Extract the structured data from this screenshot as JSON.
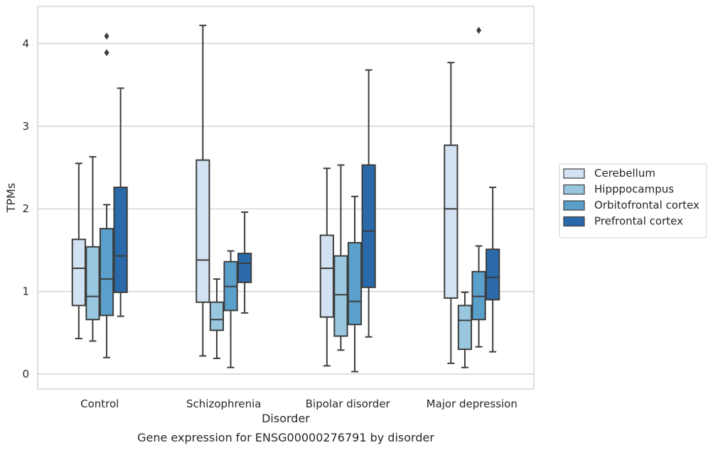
{
  "caption": "Gene expression for ENSG00000276791 by disorder",
  "chart_data": {
    "type": "box",
    "xlabel": "Disorder",
    "ylabel": "TPMs",
    "ylim": [
      -0.18,
      4.45
    ],
    "yticks": [
      0,
      1,
      2,
      3,
      4
    ],
    "grid": "horizontal",
    "legend_position": "right",
    "categories": [
      "Control",
      "Schizophrenia",
      "Bipolar disorder",
      "Major depression"
    ],
    "series": [
      {
        "name": "Cerebellum",
        "color": "#d2e2f2",
        "boxes": [
          {
            "whisker_low": 0.43,
            "q1": 0.83,
            "median": 1.28,
            "q3": 1.63,
            "whisker_high": 2.55,
            "outliers": []
          },
          {
            "whisker_low": 0.22,
            "q1": 0.87,
            "median": 1.38,
            "q3": 2.59,
            "whisker_high": 4.22,
            "outliers": []
          },
          {
            "whisker_low": 0.1,
            "q1": 0.69,
            "median": 1.28,
            "q3": 1.68,
            "whisker_high": 2.49,
            "outliers": []
          },
          {
            "whisker_low": 0.13,
            "q1": 0.92,
            "median": 2.0,
            "q3": 2.77,
            "whisker_high": 3.77,
            "outliers": []
          }
        ]
      },
      {
        "name": "Hipppocampus",
        "color": "#9ac7e0",
        "boxes": [
          {
            "whisker_low": 0.4,
            "q1": 0.66,
            "median": 0.94,
            "q3": 1.54,
            "whisker_high": 2.63,
            "outliers": []
          },
          {
            "whisker_low": 0.19,
            "q1": 0.53,
            "median": 0.66,
            "q3": 0.87,
            "whisker_high": 1.15,
            "outliers": []
          },
          {
            "whisker_low": 0.29,
            "q1": 0.46,
            "median": 0.96,
            "q3": 1.43,
            "whisker_high": 2.53,
            "outliers": []
          },
          {
            "whisker_low": 0.08,
            "q1": 0.3,
            "median": 0.65,
            "q3": 0.83,
            "whisker_high": 0.99,
            "outliers": []
          }
        ]
      },
      {
        "name": "Orbitofrontal cortex",
        "color": "#5b9fcb",
        "boxes": [
          {
            "whisker_low": 0.2,
            "q1": 0.71,
            "median": 1.15,
            "q3": 1.76,
            "whisker_high": 2.05,
            "outliers": [
              3.89,
              4.09
            ]
          },
          {
            "whisker_low": 0.08,
            "q1": 0.77,
            "median": 1.06,
            "q3": 1.36,
            "whisker_high": 1.49,
            "outliers": []
          },
          {
            "whisker_low": 0.03,
            "q1": 0.6,
            "median": 0.88,
            "q3": 1.59,
            "whisker_high": 2.15,
            "outliers": []
          },
          {
            "whisker_low": 0.33,
            "q1": 0.66,
            "median": 0.94,
            "q3": 1.24,
            "whisker_high": 1.55,
            "outliers": [
              4.16
            ]
          }
        ]
      },
      {
        "name": "Prefrontal cortex",
        "color": "#2a6aaa",
        "boxes": [
          {
            "whisker_low": 0.7,
            "q1": 0.99,
            "median": 1.43,
            "q3": 2.26,
            "whisker_high": 3.46,
            "outliers": []
          },
          {
            "whisker_low": 0.74,
            "q1": 1.11,
            "median": 1.34,
            "q3": 1.46,
            "whisker_high": 1.96,
            "outliers": []
          },
          {
            "whisker_low": 0.45,
            "q1": 1.05,
            "median": 1.73,
            "q3": 2.53,
            "whisker_high": 3.68,
            "outliers": []
          },
          {
            "whisker_low": 0.27,
            "q1": 0.9,
            "median": 1.17,
            "q3": 1.51,
            "whisker_high": 2.26,
            "outliers": []
          }
        ]
      }
    ]
  }
}
